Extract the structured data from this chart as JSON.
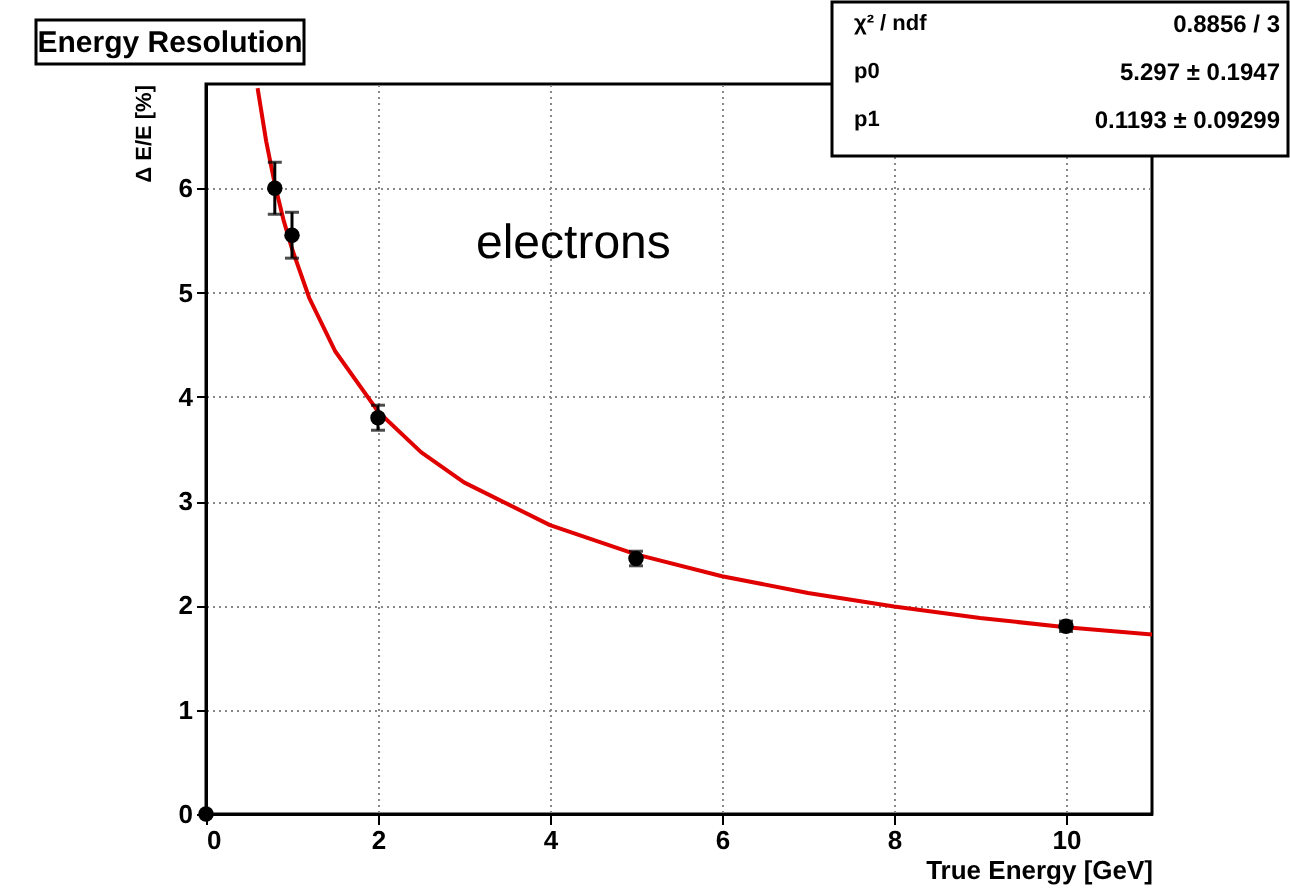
{
  "chart_data": {
    "type": "scatter",
    "title": "Energy Resolution",
    "xlabel": "True Energy [GeV]",
    "ylabel": "Δ E/E [%]",
    "xlim": [
      0,
      11
    ],
    "ylim": [
      0,
      7
    ],
    "xticks": [
      0,
      2,
      4,
      6,
      8,
      10
    ],
    "yticks": [
      0,
      1,
      2,
      3,
      4,
      5,
      6
    ],
    "grid": true,
    "marker": "circle",
    "series": [
      {
        "color": "#000000",
        "x": [
          0,
          0.8,
          1,
          2,
          5,
          10
        ],
        "values": [
          0,
          6.0,
          5.55,
          3.8,
          2.45,
          1.8
        ],
        "errors": [
          null,
          0.25,
          0.22,
          0.12,
          0.07,
          0.05
        ]
      },
      {
        "type": "line",
        "color": "#e00000",
        "marker": "none",
        "line_style": "solid",
        "x": [
          0.6,
          0.7,
          0.8,
          0.9,
          1,
          1.2,
          1.5,
          2,
          2.5,
          3,
          4,
          5,
          6,
          7,
          8,
          9,
          10,
          11
        ],
        "values": [
          6.96,
          6.45,
          6.04,
          5.7,
          5.42,
          4.95,
          4.44,
          3.86,
          3.47,
          3.18,
          2.77,
          2.49,
          2.28,
          2.12,
          1.99,
          1.88,
          1.79,
          1.72
        ]
      }
    ],
    "annotations": [
      "electrons",
      "χ² / ndf",
      "0.8856 / 3",
      "p0",
      "5.297 ± 0.1947",
      "p1",
      "0.1193 ± 0.09299"
    ]
  }
}
